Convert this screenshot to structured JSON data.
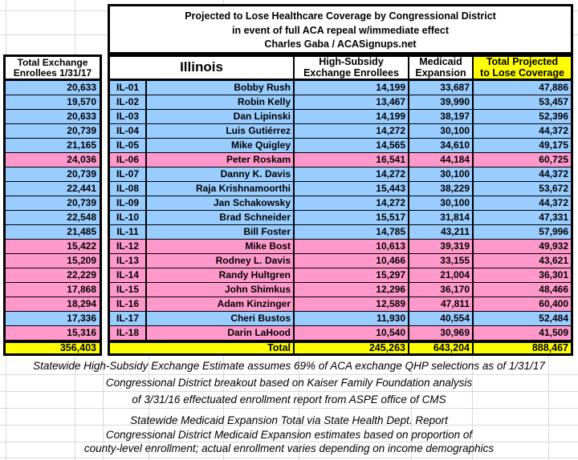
{
  "chart_data": {
    "type": "table",
    "title": "Projected to Lose Healthcare Coverage by Congressional District",
    "subtitle": "in event of full ACA repeal w/immediate effect",
    "attribution": "Charles Gaba / ACASignups.net",
    "state": "Illinois",
    "left_column_header": [
      "Total Exchange",
      "Enrollees 1/31/17"
    ],
    "column_headers": {
      "high_subsidy": [
        "High-Subsidy",
        "Exchange Enrollees"
      ],
      "medicaid": [
        "Medicaid",
        "Expansion"
      ],
      "total_projected": [
        "Total Projected",
        "to Lose Coverage"
      ]
    },
    "rows": [
      {
        "district": "IL-01",
        "rep": "Bobby Rush",
        "party": "D",
        "total_exchange": 20633,
        "high_subsidy": 14199,
        "medicaid": 33687,
        "total_lose": 47886
      },
      {
        "district": "IL-02",
        "rep": "Robin Kelly",
        "party": "D",
        "total_exchange": 19570,
        "high_subsidy": 13467,
        "medicaid": 39990,
        "total_lose": 53457
      },
      {
        "district": "IL-03",
        "rep": "Dan Lipinski",
        "party": "D",
        "total_exchange": 20633,
        "high_subsidy": 14199,
        "medicaid": 38197,
        "total_lose": 52396
      },
      {
        "district": "IL-04",
        "rep": "Luis Gutiérrez",
        "party": "D",
        "total_exchange": 20739,
        "high_subsidy": 14272,
        "medicaid": 30100,
        "total_lose": 44372
      },
      {
        "district": "IL-05",
        "rep": "Mike Quigley",
        "party": "D",
        "total_exchange": 21165,
        "high_subsidy": 14565,
        "medicaid": 34610,
        "total_lose": 49175
      },
      {
        "district": "IL-06",
        "rep": "Peter Roskam",
        "party": "R",
        "total_exchange": 24036,
        "high_subsidy": 16541,
        "medicaid": 44184,
        "total_lose": 60725
      },
      {
        "district": "IL-07",
        "rep": "Danny K. Davis",
        "party": "D",
        "total_exchange": 20739,
        "high_subsidy": 14272,
        "medicaid": 30100,
        "total_lose": 44372
      },
      {
        "district": "IL-08",
        "rep": "Raja Krishnamoorthi",
        "party": "D",
        "total_exchange": 22441,
        "high_subsidy": 15443,
        "medicaid": 38229,
        "total_lose": 53672
      },
      {
        "district": "IL-09",
        "rep": "Jan Schakowsky",
        "party": "D",
        "total_exchange": 20739,
        "high_subsidy": 14272,
        "medicaid": 30100,
        "total_lose": 44372
      },
      {
        "district": "IL-10",
        "rep": "Brad Schneider",
        "party": "D",
        "total_exchange": 22548,
        "high_subsidy": 15517,
        "medicaid": 31814,
        "total_lose": 47331
      },
      {
        "district": "IL-11",
        "rep": "Bill Foster",
        "party": "D",
        "total_exchange": 21485,
        "high_subsidy": 14785,
        "medicaid": 43211,
        "total_lose": 57996
      },
      {
        "district": "IL-12",
        "rep": "Mike Bost",
        "party": "R",
        "total_exchange": 15422,
        "high_subsidy": 10613,
        "medicaid": 39319,
        "total_lose": 49932
      },
      {
        "district": "IL-13",
        "rep": "Rodney L. Davis",
        "party": "R",
        "total_exchange": 15209,
        "high_subsidy": 10466,
        "medicaid": 33155,
        "total_lose": 43621
      },
      {
        "district": "IL-14",
        "rep": "Randy Hultgren",
        "party": "R",
        "total_exchange": 22229,
        "high_subsidy": 15297,
        "medicaid": 21004,
        "total_lose": 36301
      },
      {
        "district": "IL-15",
        "rep": "John Shimkus",
        "party": "R",
        "total_exchange": 17868,
        "high_subsidy": 12296,
        "medicaid": 36170,
        "total_lose": 48466
      },
      {
        "district": "IL-16",
        "rep": "Adam Kinzinger",
        "party": "R",
        "total_exchange": 18294,
        "high_subsidy": 12589,
        "medicaid": 47811,
        "total_lose": 60400
      },
      {
        "district": "IL-17",
        "rep": "Cheri Bustos",
        "party": "D",
        "total_exchange": 17336,
        "high_subsidy": 11930,
        "medicaid": 40554,
        "total_lose": 52484
      },
      {
        "district": "IL-18",
        "rep": "Darin LaHood",
        "party": "R",
        "total_exchange": 15316,
        "high_subsidy": 10540,
        "medicaid": 30969,
        "total_lose": 41509
      }
    ],
    "totals": {
      "label": "Total",
      "total_exchange": 356403,
      "high_subsidy": 245263,
      "medicaid": 643204,
      "total_lose": 888467
    },
    "row_colors": {
      "D": "#99CCFF",
      "R": "#FF99CC",
      "totals": "#FFFF00",
      "header_highlight": "#FFFF00"
    },
    "footnotes_block1": [
      "Statewide High-Subsidy Exchange Estimate assumes 69% of ACA exchange QHP selections as of 1/31/17",
      "Congressional District breakout based on Kaiser Family Foundation analysis",
      "of 3/31/16 effectuated enrollment report from ASPE office of CMS"
    ],
    "footnotes_block2": [
      "Statewide Medicaid Expansion Total via State Health Dept. Report",
      "Congressional District Medicaid Expansion estimates based on proportion of",
      "county-level enrollment; actual enrollment varies depending on income demographics"
    ]
  }
}
